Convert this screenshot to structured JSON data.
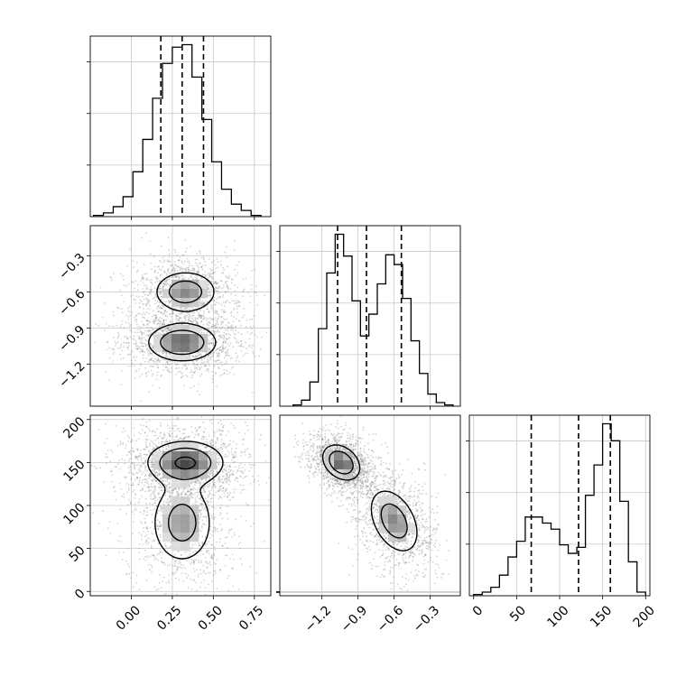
{
  "chart_data": {
    "type": "corner",
    "parameters": [
      "",
      "",
      ""
    ],
    "grid": true,
    "scatter_color": "#808080",
    "line_color": "#000000",
    "panels": [
      {
        "id": "hist-0",
        "type": "histogram",
        "row": 0,
        "col": 0,
        "x_range": [
          -0.25,
          0.85
        ],
        "bin_edges": [
          -0.23,
          -0.17,
          -0.11,
          -0.05,
          0.01,
          0.07,
          0.13,
          0.19,
          0.25,
          0.31,
          0.37,
          0.43,
          0.49,
          0.55,
          0.61,
          0.67,
          0.73,
          0.79
        ],
        "counts": [
          1,
          3,
          8,
          16,
          36,
          62,
          95,
          123,
          136,
          138,
          112,
          78,
          44,
          22,
          10,
          5,
          1
        ],
        "quantiles": [
          0.18,
          0.31,
          0.44
        ]
      },
      {
        "id": "scatter-1-0",
        "type": "density",
        "row": 1,
        "col": 0,
        "x_range": [
          -0.25,
          0.85
        ],
        "y_range": [
          -1.55,
          -0.05
        ],
        "y_ticks": [
          -1.2,
          -0.9,
          -0.6,
          -0.3
        ],
        "modes": [
          {
            "x": 0.33,
            "y": -0.6,
            "sx": 0.11,
            "sy": 0.1,
            "w": 0.45
          },
          {
            "x": 0.31,
            "y": -1.02,
            "sx": 0.12,
            "sy": 0.09,
            "w": 0.55
          }
        ]
      },
      {
        "id": "hist-1",
        "type": "histogram",
        "row": 1,
        "col": 1,
        "x_range": [
          -1.55,
          -0.05
        ],
        "bin_edges": [
          -1.44,
          -1.37,
          -1.3,
          -1.23,
          -1.16,
          -1.09,
          -1.02,
          -0.95,
          -0.88,
          -0.81,
          -0.74,
          -0.67,
          -0.6,
          -0.53,
          -0.46,
          -0.39,
          -0.32,
          -0.25,
          -0.18,
          -0.11
        ],
        "counts": [
          1,
          5,
          20,
          64,
          110,
          142,
          124,
          87,
          58,
          76,
          101,
          125,
          117,
          89,
          54,
          27,
          10,
          3,
          1
        ],
        "quantiles": [
          -1.07,
          -0.83,
          -0.54
        ]
      },
      {
        "id": "scatter-2-0",
        "type": "density",
        "row": 2,
        "col": 0,
        "x_range": [
          -0.25,
          0.85
        ],
        "y_range": [
          -5,
          205
        ],
        "y_ticks": [
          0,
          50,
          100,
          150,
          200
        ],
        "x_ticks": [
          0.0,
          0.25,
          0.5,
          0.75
        ],
        "x_tick_labels": [
          "0.00",
          "0.25",
          "0.50",
          "0.75"
        ],
        "modes": [
          {
            "x": 0.33,
            "y": 150,
            "sx": 0.13,
            "sy": 14,
            "w": 0.6
          },
          {
            "x": 0.31,
            "y": 80,
            "sx": 0.11,
            "sy": 28,
            "w": 0.4
          }
        ]
      },
      {
        "id": "scatter-2-1",
        "type": "density",
        "row": 2,
        "col": 1,
        "x_range": [
          -1.55,
          -0.05
        ],
        "y_range": [
          -5,
          205
        ],
        "x_ticks": [
          -1.2,
          -0.9,
          -0.6,
          -0.3
        ],
        "modes": [
          {
            "x": -1.04,
            "y": 150,
            "sx": 0.09,
            "sy": 12,
            "rho": -0.3,
            "w": 0.55
          },
          {
            "x": -0.6,
            "y": 82,
            "sx": 0.12,
            "sy": 22,
            "rho": -0.4,
            "w": 0.45
          }
        ]
      },
      {
        "id": "hist-2",
        "type": "histogram",
        "row": 2,
        "col": 2,
        "x_range": [
          -5,
          205
        ],
        "x_ticks": [
          0,
          50,
          100,
          150,
          200
        ],
        "bin_edges": [
          0,
          10,
          20,
          30,
          40,
          50,
          60,
          70,
          80,
          90,
          100,
          110,
          120,
          130,
          140,
          150,
          160,
          170,
          180,
          190,
          200
        ],
        "counts": [
          1,
          3,
          7,
          17,
          32,
          45,
          65,
          65,
          60,
          55,
          42,
          35,
          40,
          83,
          108,
          142,
          128,
          78,
          28,
          3
        ],
        "quantiles": [
          67,
          122,
          159
        ]
      }
    ]
  }
}
